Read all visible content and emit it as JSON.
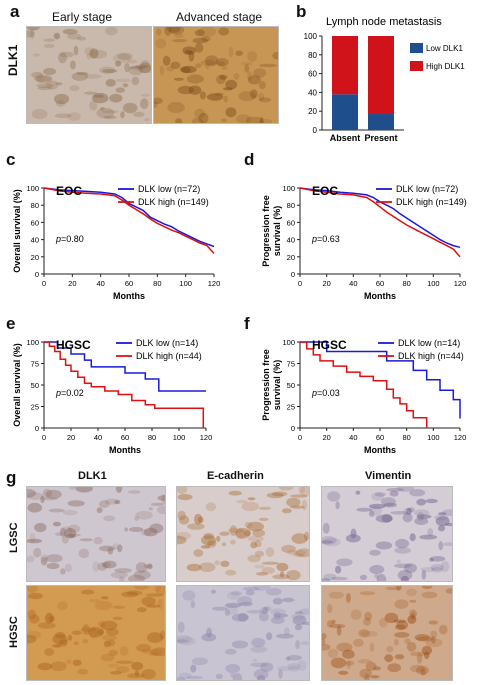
{
  "panels": {
    "a": {
      "label": "a",
      "row_label": "DLK1",
      "titles": [
        "Early stage",
        "Advanced stage"
      ],
      "images": [
        {
          "tone": "#c9b9ad",
          "stain": "#8a6a4a"
        },
        {
          "tone": "#c79655",
          "stain": "#7a4a1a"
        }
      ]
    },
    "b": {
      "label": "b"
    },
    "c": {
      "label": "c"
    },
    "d": {
      "label": "d"
    },
    "e": {
      "label": "e"
    },
    "f": {
      "label": "f"
    },
    "g": {
      "label": "g",
      "col_titles": [
        "DLK1",
        "E-cadherin",
        "Vimentin"
      ],
      "row_labels": [
        "LGSC",
        "HGSC"
      ],
      "images": [
        [
          {
            "tone": "#cfc7d0",
            "stain": "#8a6a60"
          },
          {
            "tone": "#d8cdcb",
            "stain": "#a86a30"
          },
          {
            "tone": "#d4cdd6",
            "stain": "#6e5f8a"
          }
        ],
        [
          {
            "tone": "#d39a52",
            "stain": "#a8621e"
          },
          {
            "tone": "#c9c4d1",
            "stain": "#8a82a8"
          },
          {
            "tone": "#cfa98c",
            "stain": "#9a4e14"
          }
        ]
      ]
    }
  },
  "chart_data": [
    {
      "panel": "b",
      "type": "bar",
      "stacked": true,
      "title": "Lymph node metastasis",
      "categories": [
        "Absent",
        "Present"
      ],
      "series": [
        {
          "name": "Low DLK1",
          "color": "#1f4e8c",
          "values": [
            38,
            17
          ]
        },
        {
          "name": "High DLK1",
          "color": "#d0121b",
          "values": [
            62,
            83
          ]
        }
      ],
      "ylim": [
        0,
        100
      ],
      "yticks": [
        0,
        20,
        40,
        60,
        80,
        100
      ],
      "legend": "right"
    },
    {
      "panel": "c",
      "type": "line",
      "title": "EOC",
      "ylabel": "Overall survival (%)",
      "xlabel": "Months",
      "xlim": [
        0,
        120
      ],
      "ylim": [
        0,
        100
      ],
      "xticks": [
        0,
        20,
        40,
        60,
        80,
        100,
        120
      ],
      "yticks": [
        0,
        20,
        40,
        60,
        80,
        100
      ],
      "annotation": "=0.80",
      "series": [
        {
          "name": "DLK low (n=72)",
          "color": "#1a1adb",
          "points": [
            [
              0,
              100
            ],
            [
              10,
              98
            ],
            [
              20,
              97
            ],
            [
              30,
              96
            ],
            [
              40,
              95
            ],
            [
              50,
              93
            ],
            [
              55,
              89
            ],
            [
              60,
              82
            ],
            [
              65,
              78
            ],
            [
              70,
              74
            ],
            [
              75,
              66
            ],
            [
              80,
              62
            ],
            [
              85,
              58
            ],
            [
              90,
              55
            ],
            [
              95,
              50
            ],
            [
              100,
              46
            ],
            [
              105,
              42
            ],
            [
              110,
              38
            ],
            [
              115,
              35
            ],
            [
              120,
              32
            ]
          ]
        },
        {
          "name": "DLK high (n=149)",
          "color": "#e01010",
          "points": [
            [
              0,
              100
            ],
            [
              10,
              97
            ],
            [
              20,
              95
            ],
            [
              30,
              94
            ],
            [
              40,
              93
            ],
            [
              50,
              91
            ],
            [
              55,
              86
            ],
            [
              60,
              80
            ],
            [
              65,
              75
            ],
            [
              70,
              70
            ],
            [
              75,
              64
            ],
            [
              80,
              59
            ],
            [
              85,
              55
            ],
            [
              90,
              51
            ],
            [
              95,
              48
            ],
            [
              100,
              44
            ],
            [
              105,
              40
            ],
            [
              110,
              36
            ],
            [
              115,
              33
            ],
            [
              120,
              24
            ]
          ]
        }
      ]
    },
    {
      "panel": "d",
      "type": "line",
      "title": "EOC",
      "ylabel": "Progression free survival (%)",
      "xlabel": "Months",
      "xlim": [
        0,
        120
      ],
      "ylim": [
        0,
        100
      ],
      "xticks": [
        0,
        20,
        40,
        60,
        80,
        100,
        120
      ],
      "yticks": [
        0,
        20,
        40,
        60,
        80,
        100
      ],
      "annotation": "=0.63",
      "series": [
        {
          "name": "DLK low (n=72)",
          "color": "#1a1adb",
          "points": [
            [
              0,
              100
            ],
            [
              10,
              98
            ],
            [
              20,
              97
            ],
            [
              30,
              95
            ],
            [
              40,
              94
            ],
            [
              50,
              92
            ],
            [
              55,
              89
            ],
            [
              60,
              84
            ],
            [
              65,
              80
            ],
            [
              70,
              76
            ],
            [
              75,
              70
            ],
            [
              80,
              65
            ],
            [
              85,
              60
            ],
            [
              90,
              55
            ],
            [
              95,
              50
            ],
            [
              100,
              45
            ],
            [
              105,
              40
            ],
            [
              110,
              36
            ],
            [
              115,
              33
            ],
            [
              120,
              31
            ]
          ]
        },
        {
          "name": "DLK high (n=149)",
          "color": "#e01010",
          "points": [
            [
              0,
              100
            ],
            [
              10,
              97
            ],
            [
              20,
              95
            ],
            [
              30,
              93
            ],
            [
              40,
              92
            ],
            [
              50,
              89
            ],
            [
              55,
              84
            ],
            [
              60,
              78
            ],
            [
              65,
              72
            ],
            [
              70,
              67
            ],
            [
              75,
              62
            ],
            [
              80,
              57
            ],
            [
              85,
              53
            ],
            [
              90,
              49
            ],
            [
              95,
              45
            ],
            [
              100,
              41
            ],
            [
              105,
              37
            ],
            [
              110,
              33
            ],
            [
              115,
              29
            ],
            [
              120,
              20
            ]
          ]
        }
      ]
    },
    {
      "panel": "e",
      "type": "line",
      "title": "HGSC",
      "ylabel": "Overall survival (%)",
      "xlabel": "Months",
      "xlim": [
        0,
        120
      ],
      "ylim": [
        0,
        100
      ],
      "xticks": [
        0,
        20,
        40,
        60,
        80,
        100,
        120
      ],
      "yticks": [
        0,
        25,
        50,
        75,
        100
      ],
      "annotation": "=0.02",
      "series": [
        {
          "name": "DLK low (n=14)",
          "color": "#1a1adb",
          "points": [
            [
              0,
              100
            ],
            [
              10,
              100
            ],
            [
              10,
              93
            ],
            [
              20,
              93
            ],
            [
              20,
              86
            ],
            [
              30,
              86
            ],
            [
              30,
              79
            ],
            [
              35,
              79
            ],
            [
              35,
              71
            ],
            [
              60,
              71
            ],
            [
              60,
              64
            ],
            [
              75,
              64
            ],
            [
              75,
              57
            ],
            [
              85,
              57
            ],
            [
              85,
              43
            ],
            [
              120,
              43
            ]
          ]
        },
        {
          "name": "DLK high (n=44)",
          "color": "#e01010",
          "points": [
            [
              0,
              100
            ],
            [
              4,
              100
            ],
            [
              4,
              95
            ],
            [
              8,
              95
            ],
            [
              8,
              89
            ],
            [
              12,
              89
            ],
            [
              12,
              80
            ],
            [
              16,
              80
            ],
            [
              16,
              73
            ],
            [
              20,
              73
            ],
            [
              20,
              66
            ],
            [
              25,
              66
            ],
            [
              25,
              59
            ],
            [
              30,
              59
            ],
            [
              30,
              52
            ],
            [
              35,
              52
            ],
            [
              35,
              48
            ],
            [
              45,
              48
            ],
            [
              45,
              43
            ],
            [
              55,
              43
            ],
            [
              55,
              39
            ],
            [
              65,
              39
            ],
            [
              65,
              32
            ],
            [
              75,
              32
            ],
            [
              75,
              27
            ],
            [
              82,
              27
            ],
            [
              82,
              23
            ],
            [
              118,
              23
            ],
            [
              118,
              0
            ]
          ]
        }
      ]
    },
    {
      "panel": "f",
      "type": "line",
      "title": "HGSC",
      "ylabel": "Progression free survival (%)",
      "xlabel": "Months",
      "xlim": [
        0,
        120
      ],
      "ylim": [
        0,
        100
      ],
      "xticks": [
        0,
        20,
        40,
        60,
        80,
        100,
        120
      ],
      "yticks": [
        0,
        25,
        50,
        75,
        100
      ],
      "annotation": "=0.03",
      "series": [
        {
          "name": "DLK low (n=14)",
          "color": "#1a1adb",
          "points": [
            [
              0,
              100
            ],
            [
              20,
              100
            ],
            [
              20,
              89
            ],
            [
              65,
              89
            ],
            [
              65,
              78
            ],
            [
              85,
              78
            ],
            [
              85,
              67
            ],
            [
              95,
              67
            ],
            [
              95,
              56
            ],
            [
              105,
              56
            ],
            [
              105,
              44
            ],
            [
              115,
              44
            ],
            [
              115,
              33
            ],
            [
              120,
              33
            ],
            [
              120,
              11
            ]
          ]
        },
        {
          "name": "DLK high (n=44)",
          "color": "#e01010",
          "points": [
            [
              0,
              100
            ],
            [
              5,
              100
            ],
            [
              5,
              92
            ],
            [
              10,
              92
            ],
            [
              10,
              85
            ],
            [
              15,
              85
            ],
            [
              15,
              78
            ],
            [
              25,
              78
            ],
            [
              25,
              72
            ],
            [
              35,
              72
            ],
            [
              35,
              65
            ],
            [
              45,
              65
            ],
            [
              45,
              60
            ],
            [
              55,
              60
            ],
            [
              55,
              55
            ],
            [
              65,
              55
            ],
            [
              65,
              45
            ],
            [
              70,
              45
            ],
            [
              70,
              35
            ],
            [
              75,
              35
            ],
            [
              75,
              28
            ],
            [
              80,
              28
            ],
            [
              80,
              20
            ],
            [
              85,
              20
            ],
            [
              85,
              12
            ],
            [
              95,
              12
            ],
            [
              95,
              0
            ]
          ]
        }
      ]
    }
  ]
}
